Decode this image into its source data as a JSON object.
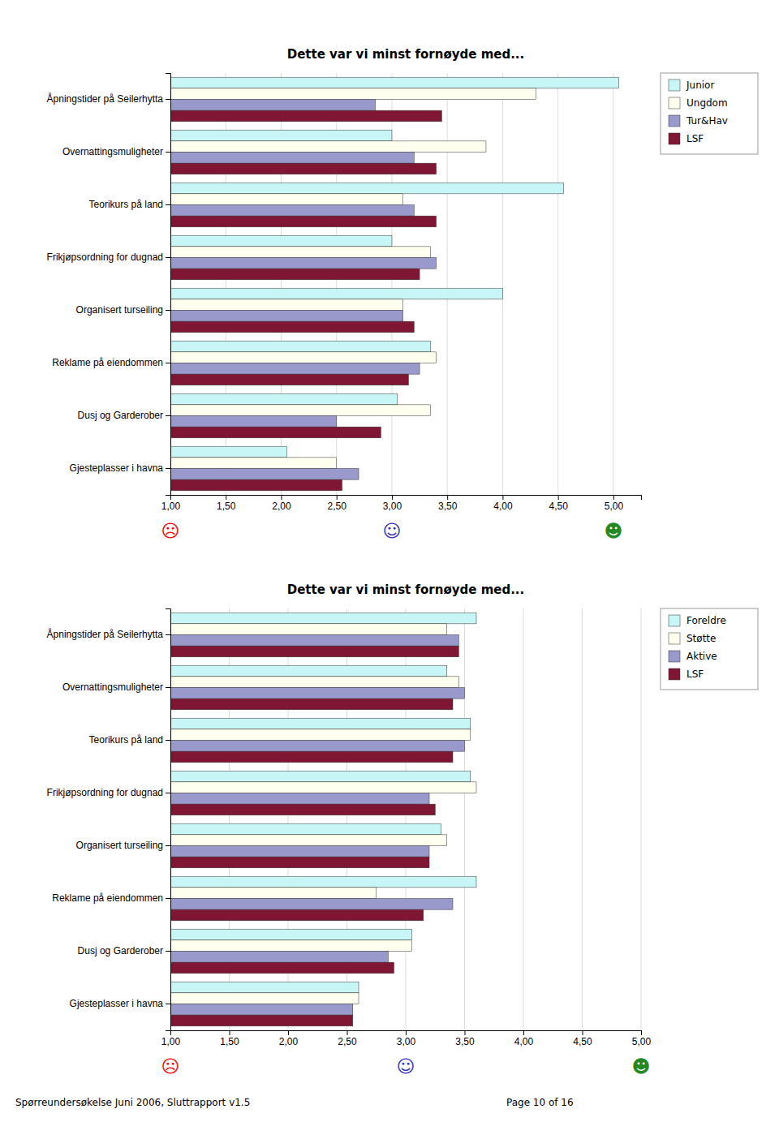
{
  "chart_data": [
    {
      "type": "bar",
      "orientation": "horizontal",
      "title": "Dette var vi minst fornøyde med...",
      "categories": [
        "Åpningstider på Seilerhytta",
        "Overnattingsmuligheter",
        "Teorikurs på land",
        "Frikjøpsordning for dugnad",
        "Organisert turseiling",
        "Reklame på eiendommen",
        "Dusj og Garderober",
        "Gjesteplasser i havna"
      ],
      "series": [
        {
          "name": "Junior",
          "color": "#c8f5f5",
          "values": [
            5.05,
            3.0,
            4.55,
            3.0,
            4.0,
            3.35,
            3.05,
            2.05
          ]
        },
        {
          "name": "Ungdom",
          "color": "#fffff0",
          "values": [
            4.3,
            3.85,
            3.1,
            3.35,
            3.1,
            3.4,
            3.35,
            2.5
          ]
        },
        {
          "name": "Tur&Hav",
          "color": "#9999cc",
          "values": [
            2.85,
            3.2,
            3.2,
            3.4,
            3.1,
            3.25,
            2.5,
            2.7
          ]
        },
        {
          "name": "LSF",
          "color": "#7f1734",
          "values": [
            3.45,
            3.4,
            3.4,
            3.25,
            3.2,
            3.15,
            2.9,
            2.55
          ]
        }
      ],
      "xlim": [
        1.0,
        5.25
      ],
      "xticks": [
        {
          "value": 1.0,
          "label": "1,00"
        },
        {
          "value": 1.5,
          "label": "1,50"
        },
        {
          "value": 2.0,
          "label": "2,00"
        },
        {
          "value": 2.5,
          "label": "2,50"
        },
        {
          "value": 3.0,
          "label": "3,00"
        },
        {
          "value": 3.5,
          "label": "3,50"
        },
        {
          "value": 4.0,
          "label": "4,00"
        },
        {
          "value": 4.5,
          "label": "4,50"
        },
        {
          "value": 5.0,
          "label": "5,00"
        }
      ],
      "grid": true,
      "legend": "upper right",
      "annotations": [
        {
          "text": "☹",
          "x": 1.0,
          "color": "red"
        },
        {
          "text": "☺",
          "x": 3.0,
          "color": "#3333bb"
        },
        {
          "text": "☻",
          "x": 5.0,
          "color": "#228822"
        }
      ]
    },
    {
      "type": "bar",
      "orientation": "horizontal",
      "title": "Dette var vi minst fornøyde med...",
      "categories": [
        "Åpningstider på Seilerhytta",
        "Overnattingsmuligheter",
        "Teorikurs på land",
        "Frikjøpsordning for dugnad",
        "Organisert turseiling",
        "Reklame på eiendommen",
        "Dusj og Garderober",
        "Gjesteplasser i havna"
      ],
      "series": [
        {
          "name": "Foreldre",
          "color": "#c8f5f5",
          "values": [
            3.6,
            3.35,
            3.55,
            3.55,
            3.3,
            3.6,
            3.05,
            2.6
          ]
        },
        {
          "name": "Støtte",
          "color": "#fffff0",
          "values": [
            3.35,
            3.45,
            3.55,
            3.6,
            3.35,
            2.75,
            3.05,
            2.6
          ]
        },
        {
          "name": "Aktive",
          "color": "#9999cc",
          "values": [
            3.45,
            3.5,
            3.5,
            3.2,
            3.2,
            3.4,
            2.85,
            2.55
          ]
        },
        {
          "name": "LSF",
          "color": "#7f1734",
          "values": [
            3.45,
            3.4,
            3.4,
            3.25,
            3.2,
            3.15,
            2.9,
            2.55
          ]
        }
      ],
      "xlim": [
        1.0,
        5.0
      ],
      "xticks": [
        {
          "value": 1.0,
          "label": "1,00"
        },
        {
          "value": 1.5,
          "label": "1,50"
        },
        {
          "value": 2.0,
          "label": "2,00"
        },
        {
          "value": 2.5,
          "label": "2,50"
        },
        {
          "value": 3.0,
          "label": "3,00"
        },
        {
          "value": 3.5,
          "label": "3,50"
        },
        {
          "value": 4.0,
          "label": "4,00"
        },
        {
          "value": 4.5,
          "label": "4,50"
        },
        {
          "value": 5.0,
          "label": "5,00"
        }
      ],
      "grid": true,
      "legend": "upper right",
      "annotations": [
        {
          "text": "☹",
          "x": 1.0,
          "color": "red"
        },
        {
          "text": "☺",
          "x": 3.0,
          "color": "#3333bb"
        },
        {
          "text": "☻",
          "x": 5.0,
          "color": "#228822"
        }
      ]
    }
  ],
  "annotations": [
    {
      "text": "Spørreundersøkelse Juni 2006, Sluttrapport v1.5"
    },
    {
      "text": "Page 10 of 16"
    }
  ]
}
